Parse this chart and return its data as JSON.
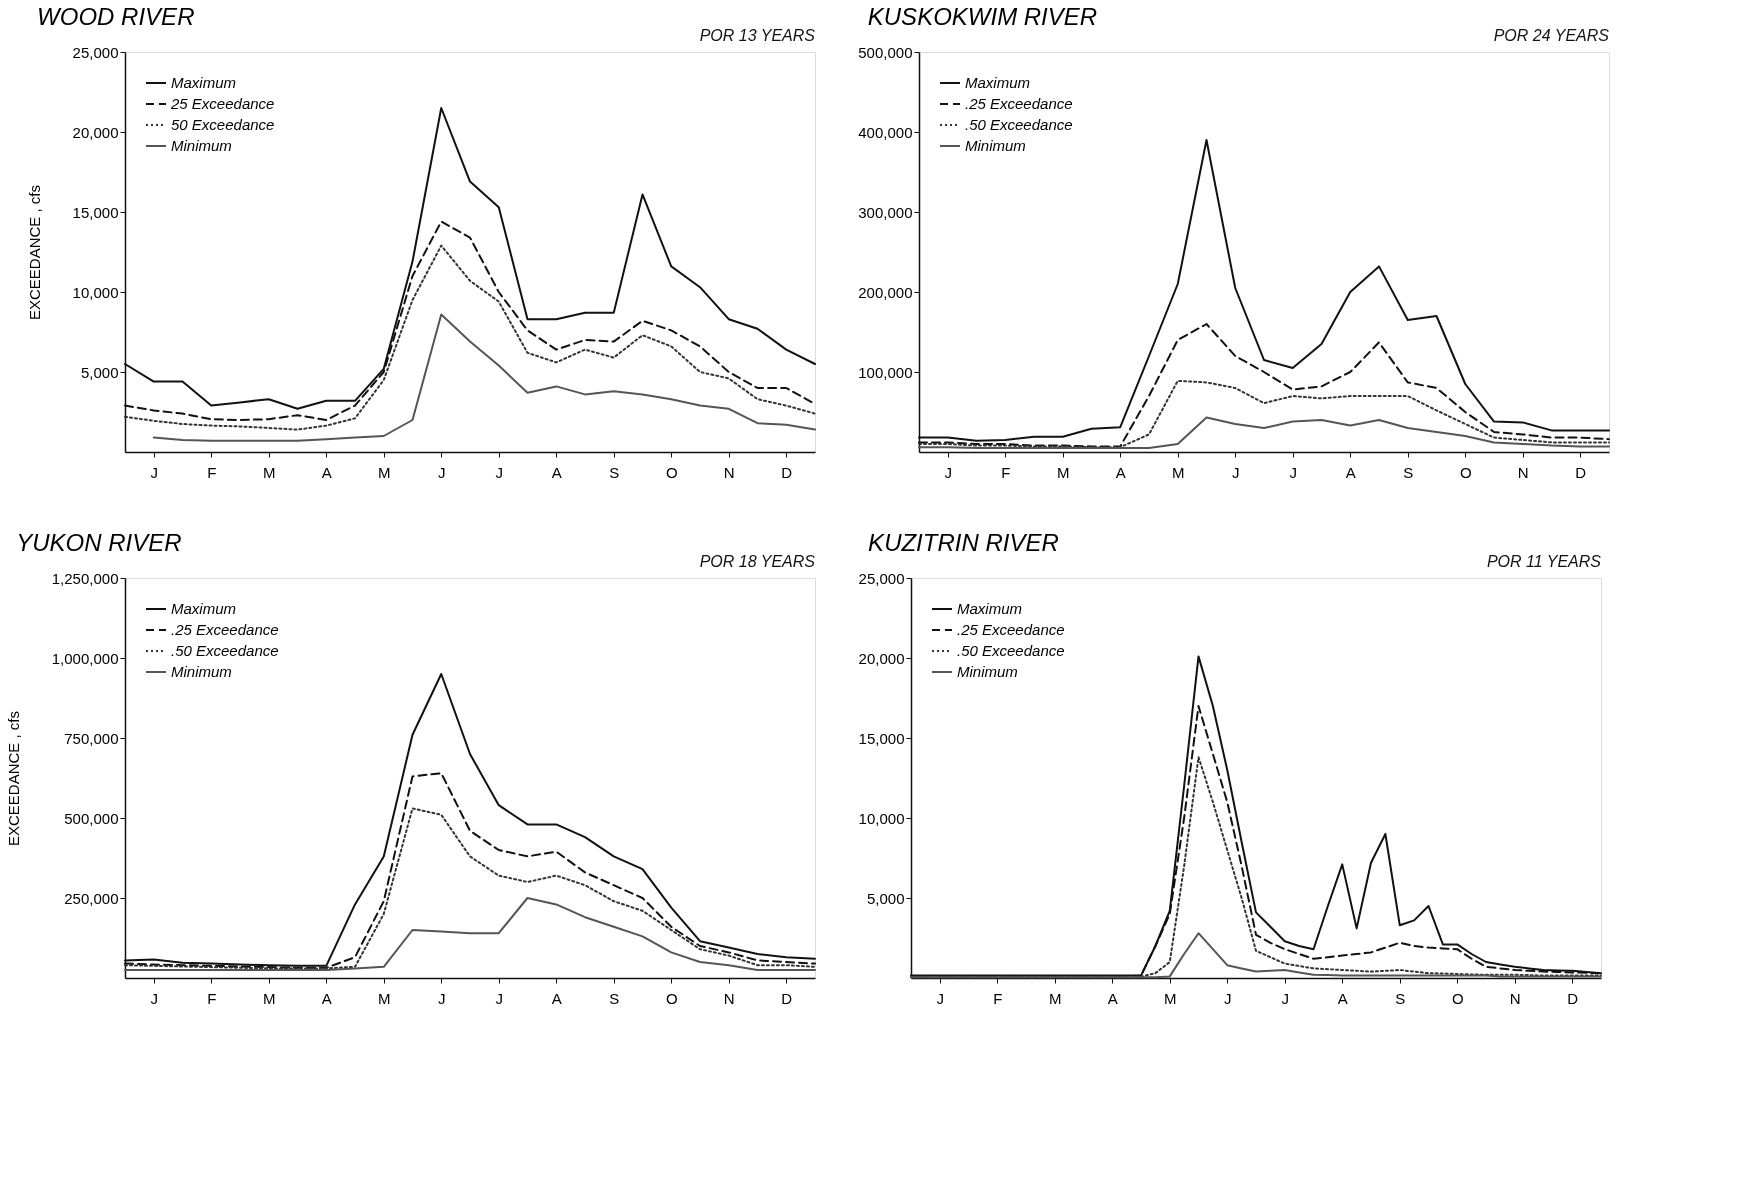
{
  "chart_data": [
    {
      "type": "line",
      "title": "WOOD RIVER",
      "subtitle": "POR 13 YEARS",
      "ylabel": "EXCEEDANCE , cfs",
      "grid": false,
      "legend": "top left",
      "categories": [
        null,
        "J",
        null,
        "F",
        null,
        "M",
        null,
        "A",
        null,
        "M",
        null,
        "J",
        null,
        "J",
        null,
        "A",
        null,
        "S",
        null,
        "O",
        null,
        "N",
        null,
        "D",
        null
      ],
      "ylim": [
        0,
        25000
      ],
      "yticks": [
        {
          "value": 5000,
          "label": "5,000"
        },
        {
          "value": 10000,
          "label": "10,000"
        },
        {
          "value": 15000,
          "label": "15,000"
        },
        {
          "value": 20000,
          "label": "20,000"
        },
        {
          "value": 25000,
          "label": "25,000"
        }
      ],
      "series": [
        {
          "name": "Maximum",
          "color": "#111111",
          "line_style": "solid",
          "values": [
            5500,
            4400,
            4400,
            2900,
            3100,
            3300,
            2700,
            3200,
            3200,
            5200,
            11900,
            21500,
            16900,
            15300,
            8300,
            8300,
            8700,
            8700,
            16100,
            11600,
            10300,
            8300,
            7700,
            6400,
            5500
          ]
        },
        {
          "name": "25 Exceedance",
          "color": "#111111",
          "line_style": "dashed",
          "values": [
            2900,
            2600,
            2400,
            2050,
            2000,
            2050,
            2300,
            2000,
            2900,
            5000,
            11000,
            14400,
            13400,
            10000,
            7600,
            6400,
            7000,
            6900,
            8200,
            7600,
            6600,
            5000,
            4000,
            4000,
            3000
          ]
        },
        {
          "name": "50 Exceedance",
          "color": "#333333",
          "line_style": "dotted",
          "values": [
            2200,
            1950,
            1750,
            1650,
            1600,
            1500,
            1400,
            1650,
            2100,
            4500,
            9500,
            12900,
            10700,
            9400,
            6200,
            5600,
            6400,
            5900,
            7300,
            6600,
            5000,
            4600,
            3300,
            2900,
            2400
          ]
        },
        {
          "name": "Minimum",
          "color": "#555555",
          "line_style": "solid",
          "values": [
            null,
            900,
            750,
            700,
            700,
            700,
            700,
            800,
            900,
            1000,
            2000,
            8600,
            6900,
            5400,
            3700,
            4100,
            3600,
            3800,
            3600,
            3300,
            2900,
            2700,
            1800,
            1700,
            1400
          ]
        }
      ]
    },
    {
      "type": "line",
      "title": "KUSKOKWIM  RIVER",
      "subtitle": "POR 24 YEARS",
      "grid": false,
      "legend": "top left",
      "categories": [
        null,
        "J",
        null,
        "F",
        null,
        "M",
        null,
        "A",
        null,
        "M",
        null,
        "J",
        null,
        "J",
        null,
        "A",
        null,
        "S",
        null,
        "O",
        null,
        "N",
        null,
        "D",
        null
      ],
      "ylim": [
        0,
        500000
      ],
      "yticks": [
        {
          "value": 100000,
          "label": "100,000"
        },
        {
          "value": 200000,
          "label": "200,000"
        },
        {
          "value": 300000,
          "label": "300,000"
        },
        {
          "value": 400000,
          "label": "400,000"
        },
        {
          "value": 500000,
          "label": "500,000"
        }
      ],
      "series": [
        {
          "name": "Maximum",
          "color": "#111111",
          "line_style": "solid",
          "values": [
            18000,
            18000,
            14000,
            15000,
            19000,
            19000,
            29000,
            31000,
            120000,
            210000,
            390000,
            205000,
            115000,
            105000,
            135000,
            200000,
            232000,
            165000,
            170000,
            85000,
            38000,
            37000,
            27000,
            27000,
            27000
          ]
        },
        {
          "name": ".25 Exceedance",
          "color": "#111111",
          "line_style": "dashed",
          "values": [
            12000,
            12000,
            10000,
            10000,
            8000,
            8000,
            7000,
            7000,
            70000,
            140000,
            160000,
            120000,
            100000,
            78000,
            82000,
            100000,
            137000,
            87000,
            80000,
            50000,
            25000,
            22000,
            18000,
            18000,
            16000
          ]
        },
        {
          "name": ".50 Exceedance",
          "color": "#333333",
          "line_style": "dotted",
          "values": [
            10000,
            10000,
            8000,
            8000,
            7000,
            7000,
            6000,
            6000,
            22000,
            89000,
            87000,
            80000,
            61000,
            70000,
            67000,
            70000,
            70000,
            70000,
            52000,
            35000,
            18000,
            15000,
            12000,
            12000,
            12000
          ]
        },
        {
          "name": "Minimum",
          "color": "#555555",
          "line_style": "solid",
          "values": [
            6000,
            6000,
            5000,
            5000,
            5000,
            5000,
            5000,
            5000,
            5000,
            10000,
            43000,
            35000,
            30000,
            38000,
            40000,
            33000,
            40000,
            30000,
            25000,
            20000,
            12000,
            10000,
            8000,
            7000,
            7000
          ]
        }
      ]
    },
    {
      "type": "line",
      "title": "YUKON  RIVER",
      "subtitle": "POR 18 YEARS",
      "ylabel": "EXCEEDANCE , cfs",
      "grid": false,
      "legend": "top left",
      "categories": [
        null,
        "J",
        null,
        "F",
        null,
        "M",
        null,
        "A",
        null,
        "M",
        null,
        "J",
        null,
        "J",
        null,
        "A",
        null,
        "S",
        null,
        "O",
        null,
        "N",
        null,
        "D",
        null
      ],
      "ylim": [
        0,
        1250000
      ],
      "yticks": [
        {
          "value": 250000,
          "label": "250,000"
        },
        {
          "value": 500000,
          "label": "500,000"
        },
        {
          "value": 750000,
          "label": "750,000"
        },
        {
          "value": 1000000,
          "label": "1,000,000"
        },
        {
          "value": 1250000,
          "label": "1,250,000"
        }
      ],
      "series": [
        {
          "name": "Maximum",
          "color": "#111111",
          "line_style": "solid",
          "values": [
            55000,
            58000,
            48000,
            45000,
            42000,
            40000,
            38000,
            38000,
            230000,
            380000,
            760000,
            950000,
            700000,
            540000,
            480000,
            480000,
            440000,
            380000,
            340000,
            220000,
            115000,
            95000,
            75000,
            65000,
            60000
          ]
        },
        {
          "name": ".25 Exceedance",
          "color": "#111111",
          "line_style": "dashed",
          "values": [
            45000,
            42000,
            40000,
            38000,
            36000,
            34000,
            32000,
            32000,
            65000,
            240000,
            630000,
            640000,
            460000,
            400000,
            380000,
            395000,
            330000,
            290000,
            250000,
            160000,
            100000,
            80000,
            55000,
            50000,
            45000
          ]
        },
        {
          "name": ".50 Exceedance",
          "color": "#333333",
          "line_style": "dotted",
          "values": [
            40000,
            38000,
            36000,
            34000,
            32000,
            30000,
            30000,
            30000,
            35000,
            200000,
            530000,
            510000,
            380000,
            320000,
            300000,
            320000,
            290000,
            240000,
            210000,
            150000,
            90000,
            70000,
            40000,
            40000,
            35000
          ]
        },
        {
          "name": "Minimum",
          "color": "#555555",
          "line_style": "solid",
          "values": [
            25000,
            25000,
            25000,
            25000,
            25000,
            25000,
            25000,
            25000,
            30000,
            35000,
            150000,
            145000,
            140000,
            140000,
            250000,
            230000,
            190000,
            160000,
            130000,
            80000,
            50000,
            40000,
            25000,
            25000,
            25000
          ]
        }
      ]
    },
    {
      "type": "line",
      "title": "KUZITRIN  RIVER",
      "subtitle": "POR 11 YEARS",
      "grid": false,
      "legend": "top left",
      "categories": [
        null,
        null,
        "J",
        null,
        null,
        null,
        "F",
        null,
        null,
        null,
        "M",
        null,
        null,
        null,
        "A",
        null,
        null,
        null,
        "M",
        null,
        null,
        null,
        "J",
        null,
        null,
        null,
        "J",
        null,
        null,
        null,
        "A",
        null,
        null,
        null,
        "S",
        null,
        null,
        null,
        "O",
        null,
        null,
        null,
        "N",
        null,
        null,
        null,
        "D",
        null,
        null
      ],
      "ylim": [
        0,
        25000
      ],
      "yticks": [
        {
          "value": 5000,
          "label": "5,000"
        },
        {
          "value": 10000,
          "label": "10,000"
        },
        {
          "value": 15000,
          "label": "15,000"
        },
        {
          "value": 20000,
          "label": "20,000"
        },
        {
          "value": 25000,
          "label": "25,000"
        }
      ],
      "series": [
        {
          "name": "Maximum",
          "color": "#111111",
          "line_style": "solid",
          "values": [
            150,
            150,
            150,
            150,
            150,
            150,
            150,
            150,
            150,
            150,
            150,
            150,
            150,
            150,
            150,
            150,
            150,
            2000,
            4200,
            12000,
            20100,
            17000,
            13000,
            8500,
            4100,
            3200,
            2300,
            2000,
            1800,
            4500,
            7100,
            3100,
            7200,
            9000,
            3300,
            3600,
            4500,
            2100,
            2100,
            1500,
            1000,
            850,
            700,
            600,
            500,
            470,
            450,
            380,
            300
          ]
        },
        {
          "name": ".25 Exceedance",
          "color": "#111111",
          "line_style": "dashed",
          "values": [
            100,
            100,
            100,
            100,
            100,
            100,
            100,
            100,
            100,
            100,
            100,
            100,
            100,
            100,
            100,
            100,
            150,
            2000,
            4000,
            10000,
            17000,
            14000,
            11000,
            7000,
            2700,
            2200,
            1800,
            1500,
            1200,
            1300,
            1400,
            1500,
            1600,
            1900,
            2200,
            2000,
            1900,
            1850,
            1800,
            1200,
            700,
            600,
            500,
            450,
            400,
            380,
            350,
            320,
            300
          ]
        },
        {
          "name": ".50 Exceedance",
          "color": "#333333",
          "line_style": "dotted",
          "values": [
            80,
            80,
            80,
            80,
            80,
            80,
            80,
            80,
            80,
            80,
            80,
            80,
            80,
            80,
            80,
            80,
            80,
            300,
            1000,
            7000,
            13800,
            11000,
            8000,
            5000,
            1700,
            1300,
            900,
            750,
            600,
            550,
            500,
            450,
            400,
            450,
            500,
            400,
            300,
            280,
            250,
            220,
            200,
            200,
            200,
            180,
            150,
            150,
            150,
            150,
            150
          ]
        },
        {
          "name": "Minimum",
          "color": "#555555",
          "line_style": "solid",
          "values": [
            50,
            50,
            50,
            50,
            50,
            50,
            50,
            50,
            50,
            50,
            50,
            50,
            50,
            50,
            50,
            50,
            50,
            50,
            100,
            1500,
            2800,
            1800,
            800,
            600,
            400,
            450,
            500,
            350,
            200,
            180,
            150,
            150,
            150,
            150,
            150,
            150,
            150,
            150,
            150,
            150,
            150,
            100,
            100,
            100,
            100,
            100,
            100,
            100,
            100
          ]
        }
      ]
    }
  ]
}
